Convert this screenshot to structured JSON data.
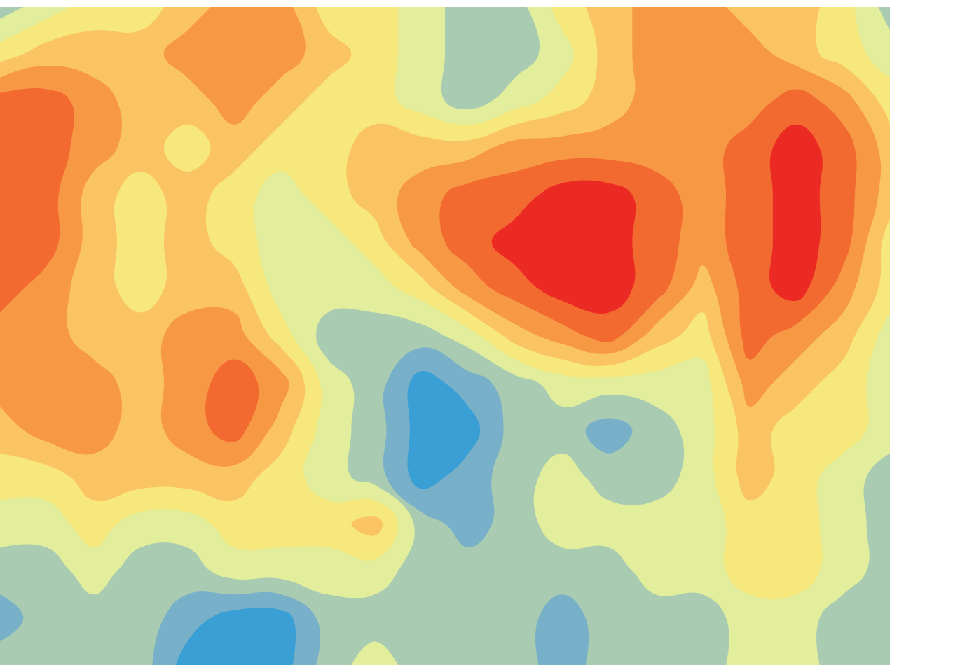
{
  "chart_data": {
    "type": "contour",
    "tick_labels": false,
    "grid": false,
    "xlim": [
      0,
      19
    ],
    "ylim": [
      14,
      0
    ],
    "zlim": [
      0.5,
      9.5
    ],
    "colors": [
      "#3a9fd4",
      "#77b0c8",
      "#a8cbb1",
      "#e2ee9c",
      "#f6e87c",
      "#fbc463",
      "#f79845",
      "#f26a30",
      "#ec2a24"
    ],
    "x": [
      0,
      1,
      2,
      3,
      4,
      5,
      6,
      7,
      8,
      9,
      10,
      11,
      12,
      13,
      14,
      15,
      16,
      17,
      18,
      19
    ],
    "y": [
      0,
      1,
      2,
      3,
      4,
      5,
      6,
      7,
      8,
      9,
      10,
      11,
      12,
      13,
      14
    ],
    "z": [
      [
        3,
        4,
        5,
        5,
        6,
        7,
        7,
        5,
        5,
        4,
        3,
        3,
        5,
        6,
        7,
        7,
        6,
        6,
        5,
        3
      ],
      [
        5,
        6,
        6,
        6,
        7,
        7,
        7,
        6,
        5,
        4,
        3,
        3,
        4,
        6,
        7,
        7,
        7,
        6,
        5,
        4
      ],
      [
        8,
        8,
        7,
        6,
        6,
        7,
        6,
        5,
        5,
        4,
        3,
        4,
        5,
        6,
        7,
        7,
        7,
        8,
        7,
        5
      ],
      [
        8,
        8,
        7,
        6,
        5,
        6,
        5,
        5,
        6,
        6,
        6,
        7,
        7,
        7,
        7,
        7,
        8,
        9,
        8,
        6
      ],
      [
        8,
        8,
        6,
        5,
        6,
        5,
        4,
        5,
        6,
        7,
        8,
        8,
        9,
        9,
        8,
        7,
        8,
        9,
        8,
        6
      ],
      [
        8,
        8,
        6,
        5,
        6,
        5,
        4,
        4,
        5,
        7,
        8,
        9,
        9,
        9,
        8,
        7,
        8,
        9,
        8,
        5
      ],
      [
        8,
        7,
        6,
        5,
        6,
        6,
        4,
        4,
        4,
        5,
        7,
        8,
        9,
        9,
        8,
        6,
        8,
        9,
        7,
        5
      ],
      [
        7,
        7,
        6,
        6,
        7,
        7,
        5,
        3,
        3,
        3,
        4,
        6,
        7,
        8,
        6,
        5,
        8,
        7,
        6,
        4
      ],
      [
        7,
        7,
        7,
        6,
        7,
        8,
        7,
        4,
        3,
        1,
        2,
        3,
        4,
        4,
        4,
        4,
        7,
        6,
        5,
        4
      ],
      [
        6,
        7,
        7,
        6,
        7,
        8,
        6,
        4,
        3,
        1,
        1,
        3,
        3,
        2,
        3,
        4,
        6,
        5,
        5,
        4
      ],
      [
        5,
        5,
        6,
        6,
        6,
        6,
        5,
        4,
        3,
        1,
        2,
        3,
        4,
        3,
        3,
        4,
        6,
        5,
        4,
        3
      ],
      [
        4,
        4,
        5,
        4,
        4,
        5,
        5,
        5,
        6,
        3,
        2,
        3,
        4,
        4,
        4,
        4,
        5,
        5,
        4,
        3
      ],
      [
        3,
        3,
        4,
        3,
        3,
        4,
        4,
        4,
        4,
        3,
        3,
        3,
        3,
        3,
        4,
        4,
        5,
        5,
        4,
        3
      ],
      [
        2,
        3,
        3,
        3,
        2,
        1,
        1,
        3,
        3,
        3,
        3,
        3,
        2,
        3,
        3,
        3,
        4,
        4,
        3,
        3
      ],
      [
        3,
        3,
        3,
        3,
        1,
        1,
        1,
        3,
        4,
        3,
        3,
        3,
        2,
        3,
        3,
        3,
        4,
        4,
        3,
        3
      ]
    ]
  }
}
